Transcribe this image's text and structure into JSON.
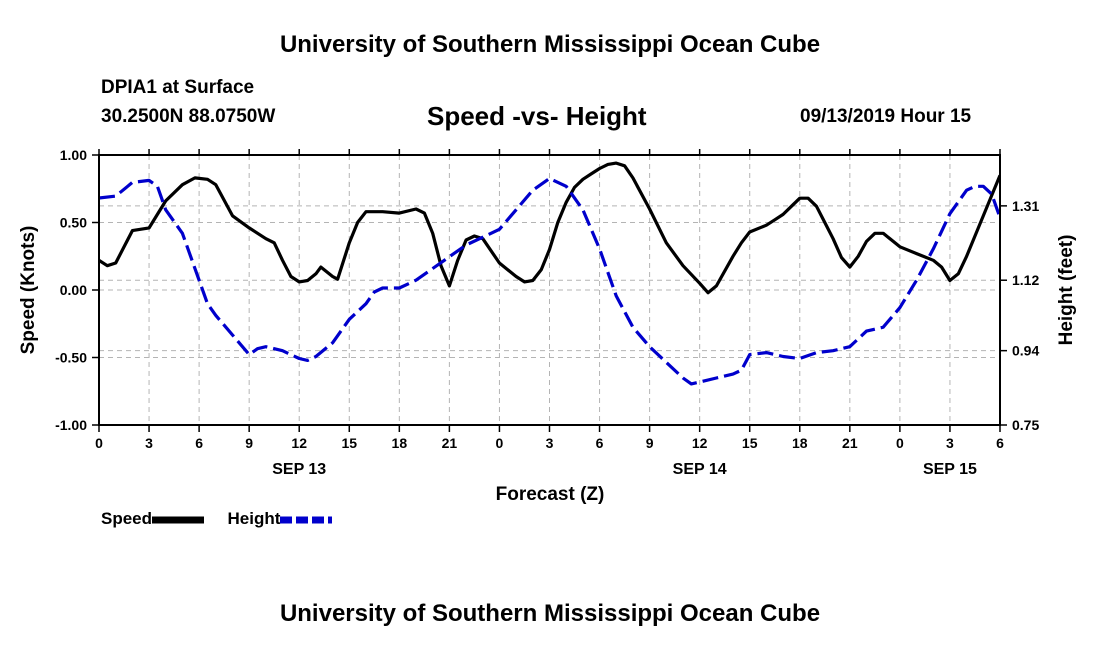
{
  "header": {
    "title": "University of Southern Mississippi Ocean Cube",
    "station": "DPIA1 at Surface",
    "coords": "30.2500N 88.0750W",
    "chart_title": "Speed -vs- Height",
    "datetime": "09/13/2019 Hour 15"
  },
  "footer": {
    "title": "University of Southern Mississippi Ocean Cube"
  },
  "colors": {
    "speed": "#000000",
    "height": "#0000cc",
    "grid": "#b4b4b4"
  },
  "legend": {
    "speed_label": "Speed",
    "height_label": "Height"
  },
  "chart_data": {
    "type": "line",
    "xlabel": "Forecast (Z)",
    "ylabel_left": "Speed (Knots)",
    "ylabel_right": "Height (feet)",
    "xlim": [
      0,
      54
    ],
    "ylim_left": [
      -1.0,
      1.0
    ],
    "ylim_right": [
      0.75,
      1.44
    ],
    "x_ticks": [
      {
        "x": 0,
        "label": "0"
      },
      {
        "x": 3,
        "label": "3"
      },
      {
        "x": 6,
        "label": "6"
      },
      {
        "x": 9,
        "label": "9"
      },
      {
        "x": 12,
        "label": "12"
      },
      {
        "x": 15,
        "label": "15"
      },
      {
        "x": 18,
        "label": "18"
      },
      {
        "x": 21,
        "label": "21"
      },
      {
        "x": 24,
        "label": "0"
      },
      {
        "x": 27,
        "label": "3"
      },
      {
        "x": 30,
        "label": "6"
      },
      {
        "x": 33,
        "label": "9"
      },
      {
        "x": 36,
        "label": "12"
      },
      {
        "x": 39,
        "label": "15"
      },
      {
        "x": 42,
        "label": "18"
      },
      {
        "x": 45,
        "label": "21"
      },
      {
        "x": 48,
        "label": "0"
      },
      {
        "x": 51,
        "label": "3"
      },
      {
        "x": 54,
        "label": "6"
      }
    ],
    "day_labels": [
      {
        "x": 12,
        "label": "SEP 13"
      },
      {
        "x": 36,
        "label": "SEP 14"
      },
      {
        "x": 51,
        "label": "SEP 15"
      }
    ],
    "y_ticks_left": [
      {
        "v": 1.0,
        "label": "1.00"
      },
      {
        "v": 0.5,
        "label": "0.50"
      },
      {
        "v": 0.0,
        "label": "0.00"
      },
      {
        "v": -0.5,
        "label": "-0.50"
      },
      {
        "v": -1.0,
        "label": "-1.00"
      }
    ],
    "y_ticks_right": [
      {
        "v": 1.31,
        "label": "1.31"
      },
      {
        "v": 1.12,
        "label": "1.12"
      },
      {
        "v": 0.94,
        "label": "0.94"
      },
      {
        "v": 0.75,
        "label": "0.75"
      }
    ],
    "series": [
      {
        "name": "Speed",
        "axis": "left",
        "style": "solid",
        "points": [
          [
            0,
            0.22
          ],
          [
            0.5,
            0.18
          ],
          [
            1,
            0.2
          ],
          [
            2,
            0.44
          ],
          [
            3,
            0.46
          ],
          [
            4,
            0.66
          ],
          [
            5,
            0.78
          ],
          [
            5.75,
            0.83
          ],
          [
            6.5,
            0.82
          ],
          [
            7,
            0.78
          ],
          [
            8,
            0.55
          ],
          [
            9,
            0.46
          ],
          [
            10,
            0.38
          ],
          [
            10.5,
            0.35
          ],
          [
            11,
            0.22
          ],
          [
            11.5,
            0.1
          ],
          [
            12,
            0.06
          ],
          [
            12.5,
            0.07
          ],
          [
            13,
            0.12
          ],
          [
            13.3,
            0.17
          ],
          [
            14,
            0.1
          ],
          [
            14.3,
            0.08
          ],
          [
            15,
            0.35
          ],
          [
            15.5,
            0.5
          ],
          [
            16,
            0.58
          ],
          [
            17,
            0.58
          ],
          [
            18,
            0.57
          ],
          [
            19,
            0.6
          ],
          [
            19.5,
            0.57
          ],
          [
            20,
            0.42
          ],
          [
            20.5,
            0.18
          ],
          [
            21,
            0.03
          ],
          [
            21.5,
            0.22
          ],
          [
            22,
            0.37
          ],
          [
            22.5,
            0.4
          ],
          [
            23,
            0.38
          ],
          [
            24,
            0.2
          ],
          [
            25,
            0.1
          ],
          [
            25.5,
            0.06
          ],
          [
            26,
            0.07
          ],
          [
            26.5,
            0.15
          ],
          [
            27,
            0.3
          ],
          [
            27.5,
            0.5
          ],
          [
            28,
            0.65
          ],
          [
            28.5,
            0.76
          ],
          [
            29,
            0.82
          ],
          [
            29.5,
            0.86
          ],
          [
            30,
            0.9
          ],
          [
            30.5,
            0.93
          ],
          [
            31,
            0.94
          ],
          [
            31.5,
            0.92
          ],
          [
            32,
            0.83
          ],
          [
            33,
            0.6
          ],
          [
            34,
            0.35
          ],
          [
            35,
            0.18
          ],
          [
            36,
            0.05
          ],
          [
            36.5,
            -0.02
          ],
          [
            37,
            0.03
          ],
          [
            38,
            0.25
          ],
          [
            38.5,
            0.35
          ],
          [
            39,
            0.43
          ],
          [
            40,
            0.48
          ],
          [
            40.5,
            0.52
          ],
          [
            41,
            0.56
          ],
          [
            41.5,
            0.62
          ],
          [
            42,
            0.68
          ],
          [
            42.5,
            0.68
          ],
          [
            43,
            0.62
          ],
          [
            43.5,
            0.5
          ],
          [
            44,
            0.38
          ],
          [
            44.5,
            0.24
          ],
          [
            45,
            0.17
          ],
          [
            45.5,
            0.25
          ],
          [
            46,
            0.36
          ],
          [
            46.5,
            0.42
          ],
          [
            47,
            0.42
          ],
          [
            48,
            0.32
          ],
          [
            49,
            0.27
          ],
          [
            50,
            0.22
          ],
          [
            50.5,
            0.17
          ],
          [
            51,
            0.07
          ],
          [
            51.5,
            0.12
          ],
          [
            52,
            0.25
          ],
          [
            53,
            0.55
          ],
          [
            54,
            0.85
          ]
        ]
      },
      {
        "name": "Height",
        "axis": "right",
        "style": "dashed",
        "points": [
          [
            0,
            1.33
          ],
          [
            1,
            1.335
          ],
          [
            2,
            1.37
          ],
          [
            3,
            1.375
          ],
          [
            3.5,
            1.36
          ],
          [
            4,
            1.3
          ],
          [
            5,
            1.24
          ],
          [
            6,
            1.12
          ],
          [
            6.5,
            1.06
          ],
          [
            7,
            1.03
          ],
          [
            8,
            0.98
          ],
          [
            9,
            0.93
          ],
          [
            9.5,
            0.945
          ],
          [
            10,
            0.95
          ],
          [
            11,
            0.94
          ],
          [
            12,
            0.92
          ],
          [
            12.5,
            0.915
          ],
          [
            13,
            0.925
          ],
          [
            14,
            0.96
          ],
          [
            15,
            1.02
          ],
          [
            16,
            1.06
          ],
          [
            16.5,
            1.09
          ],
          [
            17,
            1.1
          ],
          [
            18,
            1.1
          ],
          [
            19,
            1.12
          ],
          [
            20,
            1.15
          ],
          [
            21,
            1.18
          ],
          [
            22,
            1.21
          ],
          [
            23,
            1.23
          ],
          [
            24,
            1.25
          ],
          [
            25,
            1.3
          ],
          [
            26,
            1.35
          ],
          [
            27,
            1.38
          ],
          [
            28,
            1.36
          ],
          [
            29,
            1.3
          ],
          [
            30,
            1.2
          ],
          [
            31,
            1.08
          ],
          [
            32,
            1.0
          ],
          [
            33,
            0.95
          ],
          [
            34,
            0.91
          ],
          [
            35,
            0.87
          ],
          [
            35.5,
            0.855
          ],
          [
            36,
            0.86
          ],
          [
            37,
            0.87
          ],
          [
            38,
            0.88
          ],
          [
            38.5,
            0.89
          ],
          [
            39,
            0.93
          ],
          [
            40,
            0.935
          ],
          [
            41,
            0.925
          ],
          [
            42,
            0.92
          ],
          [
            43,
            0.935
          ],
          [
            44,
            0.94
          ],
          [
            45,
            0.95
          ],
          [
            46,
            0.99
          ],
          [
            47,
            1.0
          ],
          [
            48,
            1.05
          ],
          [
            49,
            1.12
          ],
          [
            50,
            1.2
          ],
          [
            51,
            1.29
          ],
          [
            52,
            1.35
          ],
          [
            52.5,
            1.36
          ],
          [
            53,
            1.36
          ],
          [
            53.5,
            1.34
          ],
          [
            54,
            1.28
          ]
        ]
      }
    ]
  }
}
